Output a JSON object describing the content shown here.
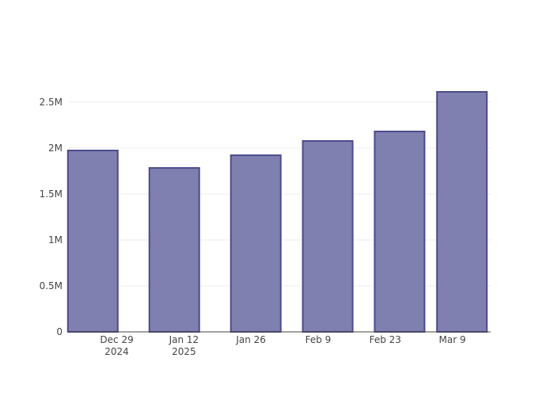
{
  "chart_data": {
    "type": "bar",
    "x": [
      "2024-12-24",
      "2025-01-10",
      "2025-01-27",
      "2025-02-11",
      "2025-02-26",
      "2025-03-11"
    ],
    "values": [
      1974000,
      1784000,
      1922000,
      2078000,
      2181000,
      2612000
    ],
    "color": "#8080b0",
    "edge_color": "#4b4b8c",
    "xlim": [
      "2024-12-19",
      "2025-03-17"
    ],
    "xticks": [
      {
        "value": "2024-12-29",
        "label": "Dec 29\n2024"
      },
      {
        "value": "2025-01-12",
        "label": "Jan 12\n2025"
      },
      {
        "value": "2025-01-26",
        "label": "Jan 26"
      },
      {
        "value": "2025-02-09",
        "label": "Feb 9"
      },
      {
        "value": "2025-02-23",
        "label": "Feb 23"
      },
      {
        "value": "2025-03-09",
        "label": "Mar 9"
      }
    ],
    "ylim": [
      0,
      2750000
    ],
    "yticks": [
      0,
      {
        "value": 500000,
        "label": "0.5M"
      },
      {
        "value": 1000000,
        "label": "1M"
      },
      {
        "value": 1500000,
        "label": "1.5M"
      },
      {
        "value": 2000000,
        "label": "2M"
      },
      {
        "value": 2500000,
        "label": "2.5M"
      }
    ],
    "grid": true
  }
}
